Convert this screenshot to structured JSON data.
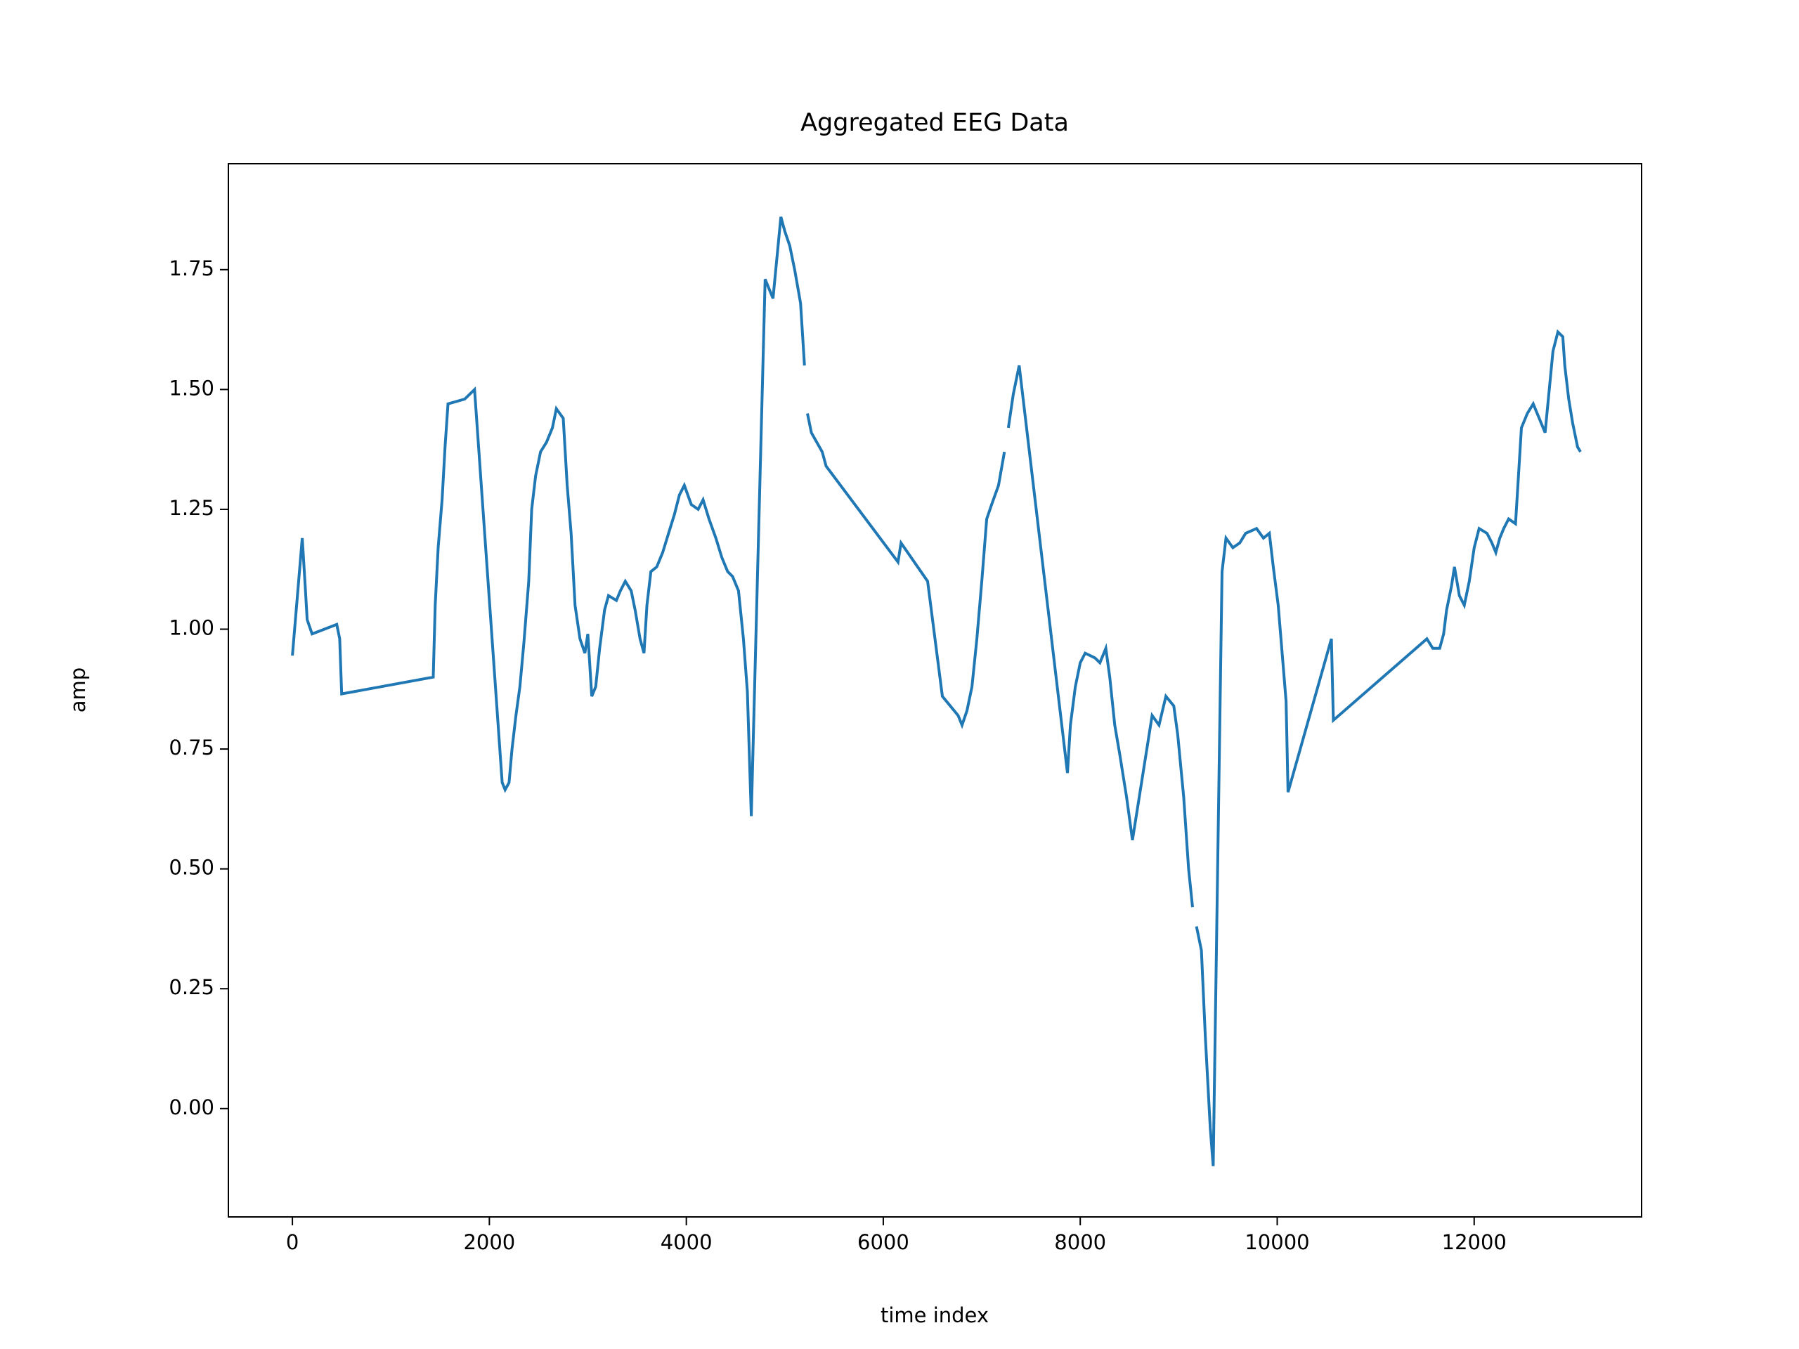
{
  "chart_data": {
    "type": "line",
    "title": "Aggregated EEG Data",
    "x_label": "time index",
    "y_label": "amp",
    "color": "#1f77b4",
    "grid": false,
    "xlim": [
      -650,
      13700
    ],
    "ylim": [
      -0.226,
      1.971
    ],
    "xticks": [
      0,
      2000,
      4000,
      6000,
      8000,
      10000,
      12000
    ],
    "yticks": [
      {
        "value": 0,
        "label": "0.00"
      },
      0.25,
      {
        "value": 0.5,
        "label": "0.50"
      },
      0.75,
      {
        "value": 1,
        "label": "1.00"
      },
      1.25,
      {
        "value": 1.5,
        "label": "1.50"
      },
      1.75
    ],
    "x": [
      0,
      100,
      130,
      150,
      200,
      450,
      480,
      500,
      1430,
      1450,
      1480,
      1520,
      1550,
      1580,
      1750,
      1800,
      1850,
      2130,
      2160,
      2200,
      2230,
      2270,
      2310,
      2350,
      2400,
      2430,
      2470,
      2520,
      2580,
      2640,
      2680,
      2750,
      2790,
      2830,
      2870,
      2920,
      2970,
      3000,
      3040,
      3080,
      3120,
      3170,
      3210,
      3290,
      3330,
      3380,
      3440,
      3480,
      3530,
      3570,
      3600,
      3640,
      3700,
      3760,
      3820,
      3880,
      3930,
      3980,
      4050,
      4120,
      4170,
      4230,
      4300,
      4360,
      4420,
      4470,
      4530,
      4580,
      4620,
      4660,
      4800,
      4880,
      4960,
      5000,
      5050,
      5100,
      5160,
      5200,
      5215,
      5230,
      5270,
      5380,
      5420,
      6150,
      6180,
      6450,
      6600,
      6680,
      6760,
      6800,
      6850,
      6900,
      6950,
      7000,
      7050,
      7100,
      7170,
      7230,
      7250,
      7270,
      7320,
      7380,
      7870,
      7900,
      7950,
      8000,
      8050,
      8150,
      8200,
      8260,
      8300,
      8350,
      8400,
      8470,
      8530,
      8730,
      8800,
      8870,
      8950,
      8990,
      9050,
      9100,
      9140,
      9160,
      9180,
      9230,
      9270,
      9320,
      9350,
      9440,
      9480,
      9550,
      9620,
      9680,
      9790,
      9860,
      9920,
      9960,
      10010,
      10050,
      10090,
      10110,
      10550,
      10570,
      11520,
      11580,
      11650,
      11690,
      11720,
      11770,
      11800,
      11850,
      11900,
      11950,
      12000,
      12050,
      12130,
      12180,
      12220,
      12260,
      12300,
      12350,
      12420,
      12450,
      12480,
      12540,
      12600,
      12680,
      12720,
      12800,
      12850,
      12900,
      12920,
      12960,
      13000,
      13050,
      13080
    ],
    "values": [
      0.945,
      1.19,
      1.09,
      1.02,
      0.99,
      1.01,
      0.98,
      0.865,
      0.9,
      1.05,
      1.17,
      1.27,
      1.38,
      1.47,
      1.48,
      1.49,
      1.5,
      0.68,
      0.665,
      0.68,
      0.75,
      0.82,
      0.88,
      0.97,
      1.1,
      1.25,
      1.32,
      1.37,
      1.39,
      1.42,
      1.46,
      1.44,
      1.3,
      1.2,
      1.05,
      0.98,
      0.95,
      0.99,
      0.86,
      0.88,
      0.96,
      1.04,
      1.07,
      1.06,
      1.08,
      1.1,
      1.08,
      1.04,
      0.98,
      0.95,
      1.05,
      1.12,
      1.13,
      1.16,
      1.2,
      1.24,
      1.28,
      1.3,
      1.26,
      1.25,
      1.27,
      1.23,
      1.19,
      1.15,
      1.12,
      1.11,
      1.08,
      0.98,
      0.87,
      0.61,
      1.73,
      1.69,
      1.86,
      1.83,
      1.8,
      1.75,
      1.68,
      1.55,
      null,
      1.45,
      1.41,
      1.37,
      1.34,
      1.14,
      1.18,
      1.1,
      0.86,
      0.84,
      0.82,
      0.8,
      0.83,
      0.88,
      0.98,
      1.1,
      1.23,
      1.26,
      1.3,
      1.37,
      null,
      1.42,
      1.49,
      1.55,
      0.7,
      0.8,
      0.88,
      0.93,
      0.95,
      0.94,
      0.93,
      0.96,
      0.9,
      0.8,
      0.74,
      0.65,
      0.56,
      0.82,
      0.8,
      0.86,
      0.84,
      0.78,
      0.65,
      0.5,
      0.42,
      null,
      0.38,
      0.33,
      0.15,
      -0.04,
      -0.12,
      1.12,
      1.19,
      1.17,
      1.18,
      1.2,
      1.21,
      1.19,
      1.2,
      1.13,
      1.05,
      0.95,
      0.85,
      0.66,
      0.98,
      0.81,
      0.98,
      0.96,
      0.96,
      0.99,
      1.04,
      1.09,
      1.13,
      1.07,
      1.05,
      1.1,
      1.17,
      1.21,
      1.2,
      1.18,
      1.16,
      1.19,
      1.21,
      1.23,
      1.22,
      1.32,
      1.42,
      1.45,
      1.47,
      1.43,
      1.41,
      1.58,
      1.62,
      1.61,
      1.55,
      1.48,
      1.43,
      1.38,
      1.37
    ]
  }
}
